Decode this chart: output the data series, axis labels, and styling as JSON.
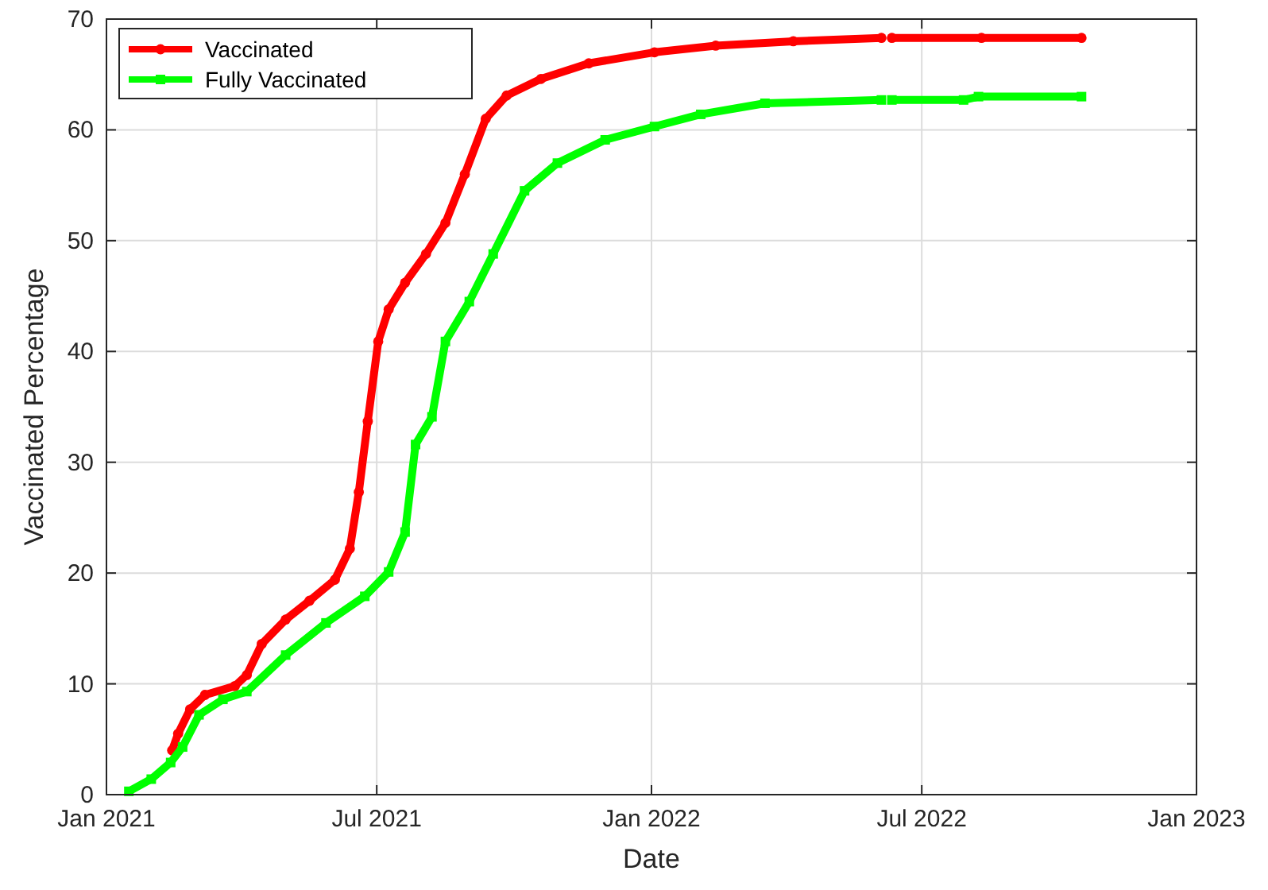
{
  "chart_data": {
    "type": "line",
    "xlabel": "Date",
    "ylabel": "Vaccinated Percentage",
    "xlim": [
      "2021-01-01",
      "2023-01-01"
    ],
    "xticks": [
      {
        "value": "2021-01-01",
        "label": "Jan 2021"
      },
      {
        "value": "2021-07-01",
        "label": "Jul 2021"
      },
      {
        "value": "2022-01-01",
        "label": "Jan 2022"
      },
      {
        "value": "2022-07-01",
        "label": "Jul 2022"
      },
      {
        "value": "2023-01-01",
        "label": "Jan 2023"
      }
    ],
    "ylim": [
      0,
      70
    ],
    "yticks": [
      0,
      10,
      20,
      30,
      40,
      50,
      60,
      70
    ],
    "grid": true,
    "legend": "top left",
    "series": [
      {
        "name": "Vaccinated",
        "color": "#ff0000",
        "marker": "circle",
        "x": [
          "2021-02-14",
          "2021-02-18",
          "2021-02-26",
          "2021-03-08",
          "2021-03-28",
          "2021-04-05",
          "2021-04-15",
          "2021-05-01",
          "2021-05-17",
          "2021-06-03",
          "2021-06-13",
          "2021-06-19",
          "2021-06-25",
          "2021-07-02",
          "2021-07-09",
          "2021-07-20",
          "2021-08-03",
          "2021-08-16",
          "2021-08-29",
          "2021-09-12",
          "2021-09-26",
          "2021-10-19",
          "2021-11-20",
          "2022-01-03",
          "2022-02-13",
          "2022-04-06",
          "2022-06-04",
          "2022-06-07",
          "2022-06-11",
          "2022-08-10",
          "2022-10-16"
        ],
        "values": [
          4.0,
          5.5,
          7.7,
          9.0,
          9.8,
          10.8,
          13.6,
          15.8,
          17.5,
          19.4,
          22.2,
          27.3,
          33.7,
          40.9,
          43.8,
          46.2,
          48.8,
          51.6,
          56.0,
          61.0,
          63.1,
          64.6,
          66.0,
          67.0,
          67.6,
          68.0,
          68.3,
          null,
          68.3,
          68.3,
          68.3
        ]
      },
      {
        "name": "Fully Vaccinated",
        "color": "#00ff00",
        "marker": "square",
        "x": [
          "2021-01-16",
          "2021-01-31",
          "2021-02-13",
          "2021-02-21",
          "2021-03-04",
          "2021-03-20",
          "2021-04-05",
          "2021-05-01",
          "2021-05-28",
          "2021-06-23",
          "2021-07-09",
          "2021-07-20",
          "2021-07-27",
          "2021-08-07",
          "2021-08-16",
          "2021-09-01",
          "2021-09-17",
          "2021-10-08",
          "2021-10-30",
          "2021-12-01",
          "2022-01-03",
          "2022-02-03",
          "2022-03-18",
          "2022-06-04",
          "2022-06-07",
          "2022-06-11",
          "2022-07-29",
          "2022-08-08",
          "2022-10-16"
        ],
        "values": [
          0.3,
          1.4,
          2.9,
          4.3,
          7.2,
          8.6,
          9.3,
          12.6,
          15.5,
          17.9,
          20.1,
          23.7,
          31.6,
          34.1,
          40.9,
          44.5,
          48.8,
          54.5,
          57.0,
          59.1,
          60.3,
          61.4,
          62.4,
          62.7,
          null,
          62.7,
          62.7,
          63.0,
          63.0
        ]
      }
    ]
  }
}
